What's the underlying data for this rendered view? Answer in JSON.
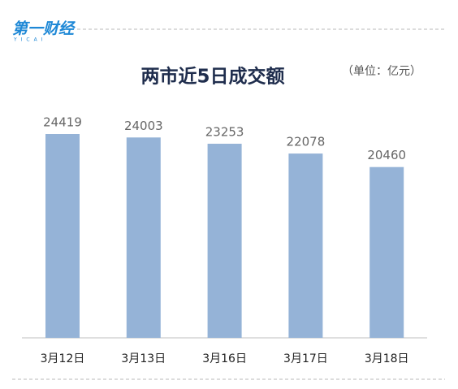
{
  "logo": {
    "name": "第一财经",
    "sub": "YICAI"
  },
  "chart_data": {
    "type": "bar",
    "title": "两市近5日成交额",
    "subtitle": "（单位：亿元）",
    "categories": [
      "3月12日",
      "3月13日",
      "3月16日",
      "3月17日",
      "3月18日"
    ],
    "values": [
      24419,
      24003,
      23253,
      22078,
      20460
    ],
    "color": "#95b3d7"
  }
}
